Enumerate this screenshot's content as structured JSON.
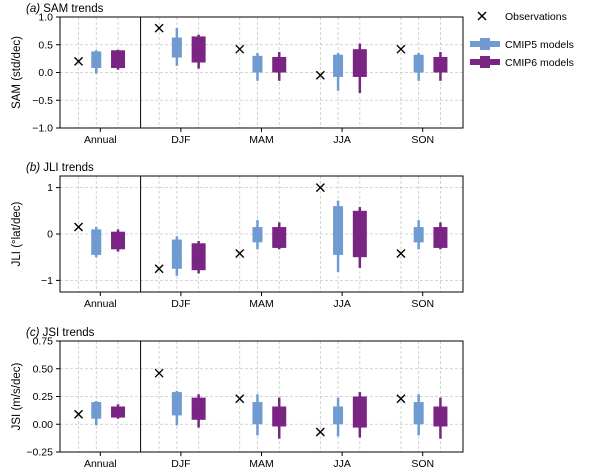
{
  "colors": {
    "cmip5": "#6f9bd1",
    "cmip6": "#7a2483",
    "obs": "#000000",
    "grid": "#c8c8c8"
  },
  "legend": {
    "observations": "Observations",
    "cmip5": "CMIP5 models",
    "cmip6": "CMIP6 models",
    "placement": "right"
  },
  "chart_data": [
    {
      "type": "boxplot",
      "panel_letter": "(a)",
      "title": "SAM trends",
      "ylabel": "SAM (std/dec)",
      "ylim": [
        -1.0,
        1.0
      ],
      "yticks": [
        -1.0,
        -0.5,
        0.0,
        0.5,
        1.0
      ],
      "ytick_labels": [
        "−1.0",
        "−0.5",
        "0.0",
        "0.5",
        "1.0"
      ],
      "grid": true,
      "categories": [
        "Annual",
        "DJF",
        "MAM",
        "JJA",
        "SON"
      ],
      "observations": [
        0.2,
        0.8,
        0.42,
        -0.05,
        0.42
      ],
      "series": [
        {
          "name": "CMIP5 models",
          "whisker_low": [
            -0.02,
            0.12,
            -0.15,
            -0.33,
            -0.15
          ],
          "q1": [
            0.08,
            0.27,
            0.0,
            -0.08,
            0.0
          ],
          "median": [
            0.2,
            0.45,
            0.1,
            0.1,
            0.1
          ],
          "q3": [
            0.38,
            0.63,
            0.3,
            0.32,
            0.32
          ],
          "whisker_high": [
            0.4,
            0.8,
            0.35,
            0.35,
            0.35
          ]
        },
        {
          "name": "CMIP6 models",
          "whisker_low": [
            0.05,
            0.07,
            -0.15,
            -0.37,
            -0.15
          ],
          "q1": [
            0.08,
            0.18,
            0.0,
            -0.08,
            0.0
          ],
          "median": [
            0.22,
            0.38,
            0.1,
            0.08,
            0.1
          ],
          "q3": [
            0.4,
            0.65,
            0.28,
            0.42,
            0.28
          ],
          "whisker_high": [
            0.41,
            0.68,
            0.37,
            0.52,
            0.37
          ]
        }
      ]
    },
    {
      "type": "boxplot",
      "panel_letter": "(b)",
      "title": "JLI trends",
      "ylabel": "JLI (°lat/dec)",
      "ylim": [
        -1.25,
        1.25
      ],
      "yticks": [
        -1,
        0,
        1
      ],
      "ytick_labels": [
        "−1",
        "0",
        "1"
      ],
      "grid": true,
      "categories": [
        "Annual",
        "DJF",
        "MAM",
        "JJA",
        "SON"
      ],
      "observations": [
        0.15,
        -0.75,
        -0.42,
        1.0,
        -0.42
      ],
      "series": [
        {
          "name": "CMIP5 models",
          "whisker_low": [
            -0.5,
            -0.9,
            -0.33,
            -0.82,
            -0.33
          ],
          "q1": [
            -0.45,
            -0.75,
            -0.18,
            -0.45,
            -0.18
          ],
          "median": [
            -0.13,
            -0.5,
            0.0,
            -0.02,
            0.0
          ],
          "q3": [
            0.1,
            -0.12,
            0.15,
            0.6,
            0.15
          ],
          "whisker_high": [
            0.15,
            -0.05,
            0.3,
            0.72,
            0.3
          ]
        },
        {
          "name": "CMIP6 models",
          "whisker_low": [
            -0.38,
            -0.85,
            -0.33,
            -0.73,
            -0.33
          ],
          "q1": [
            -0.33,
            -0.78,
            -0.3,
            -0.5,
            -0.3
          ],
          "median": [
            -0.1,
            -0.5,
            0.0,
            -0.05,
            0.0
          ],
          "q3": [
            0.05,
            -0.2,
            0.15,
            0.5,
            0.15
          ],
          "whisker_high": [
            0.1,
            -0.15,
            0.25,
            0.58,
            0.25
          ]
        }
      ]
    },
    {
      "type": "boxplot",
      "panel_letter": "(c)",
      "title": "JSI trends",
      "ylabel": "JSI (m/s/dec)",
      "ylim": [
        -0.25,
        0.75
      ],
      "yticks": [
        -0.25,
        0.0,
        0.25,
        0.5,
        0.75
      ],
      "ytick_labels": [
        "−0.25",
        "0.00",
        "0.25",
        "0.50",
        "0.75"
      ],
      "grid": true,
      "categories": [
        "Annual",
        "DJF",
        "MAM",
        "JJA",
        "SON"
      ],
      "observations": [
        0.09,
        0.46,
        0.23,
        -0.07,
        0.23
      ],
      "series": [
        {
          "name": "CMIP5 models",
          "whisker_low": [
            -0.01,
            -0.01,
            -0.1,
            -0.11,
            -0.1
          ],
          "q1": [
            0.05,
            0.08,
            0.0,
            0.0,
            0.0
          ],
          "median": [
            0.12,
            0.16,
            0.1,
            0.08,
            0.1
          ],
          "q3": [
            0.2,
            0.29,
            0.2,
            0.16,
            0.2
          ],
          "whisker_high": [
            0.21,
            0.3,
            0.27,
            0.24,
            0.27
          ]
        },
        {
          "name": "CMIP6 models",
          "whisker_low": [
            0.05,
            -0.03,
            -0.13,
            -0.12,
            -0.13
          ],
          "q1": [
            0.06,
            0.04,
            -0.02,
            -0.03,
            -0.02
          ],
          "median": [
            0.11,
            0.12,
            0.05,
            0.09,
            0.05
          ],
          "q3": [
            0.16,
            0.24,
            0.16,
            0.25,
            0.16
          ],
          "whisker_high": [
            0.18,
            0.27,
            0.24,
            0.29,
            0.24
          ]
        }
      ]
    }
  ]
}
